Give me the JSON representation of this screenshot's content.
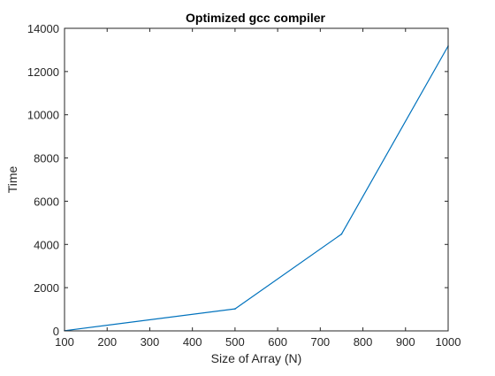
{
  "chart_data": {
    "type": "line",
    "title": "Optimized gcc compiler",
    "xlabel": "Size of Array (N)",
    "ylabel": "Time",
    "xlim": [
      100,
      1000
    ],
    "ylim": [
      0,
      14000
    ],
    "xticks": [
      100,
      200,
      300,
      400,
      500,
      600,
      700,
      800,
      900,
      1000
    ],
    "yticks": [
      0,
      2000,
      4000,
      6000,
      8000,
      10000,
      12000,
      14000
    ],
    "grid": false,
    "legend": "none",
    "series": [
      {
        "x": [
          100,
          500,
          750,
          1000
        ],
        "y": [
          10,
          1020,
          4480,
          13180
        ],
        "color": "#0072BD"
      }
    ]
  }
}
